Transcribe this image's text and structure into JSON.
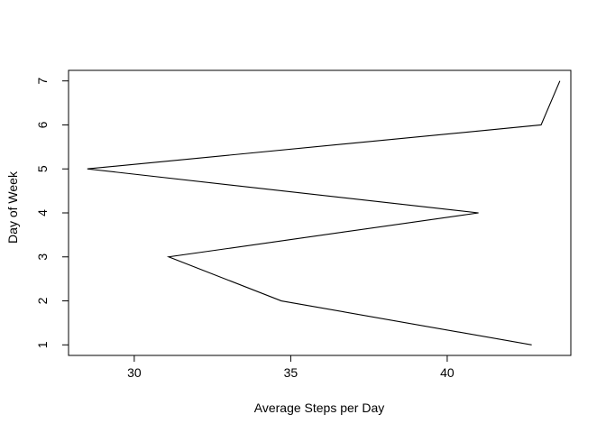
{
  "chart_data": {
    "type": "line",
    "title": "",
    "xlabel": "Average Steps per Day",
    "ylabel": "Day of Week",
    "xlim": [
      27.9,
      43.95
    ],
    "ylim": [
      0.76,
      7.24
    ],
    "x_ticks": [
      30,
      35,
      40
    ],
    "y_ticks": [
      1,
      2,
      3,
      4,
      5,
      6,
      7
    ],
    "x_tick_labels": [
      "30",
      "35",
      "40"
    ],
    "y_tick_labels": [
      "1",
      "2",
      "3",
      "4",
      "5",
      "6",
      "7"
    ],
    "series": [
      {
        "x": [
          42.7,
          34.7,
          31.1,
          41.0,
          28.5,
          43.0,
          43.6
        ],
        "y": [
          1,
          2,
          3,
          4,
          5,
          6,
          7
        ],
        "color": "#000000"
      }
    ],
    "grid": false
  }
}
